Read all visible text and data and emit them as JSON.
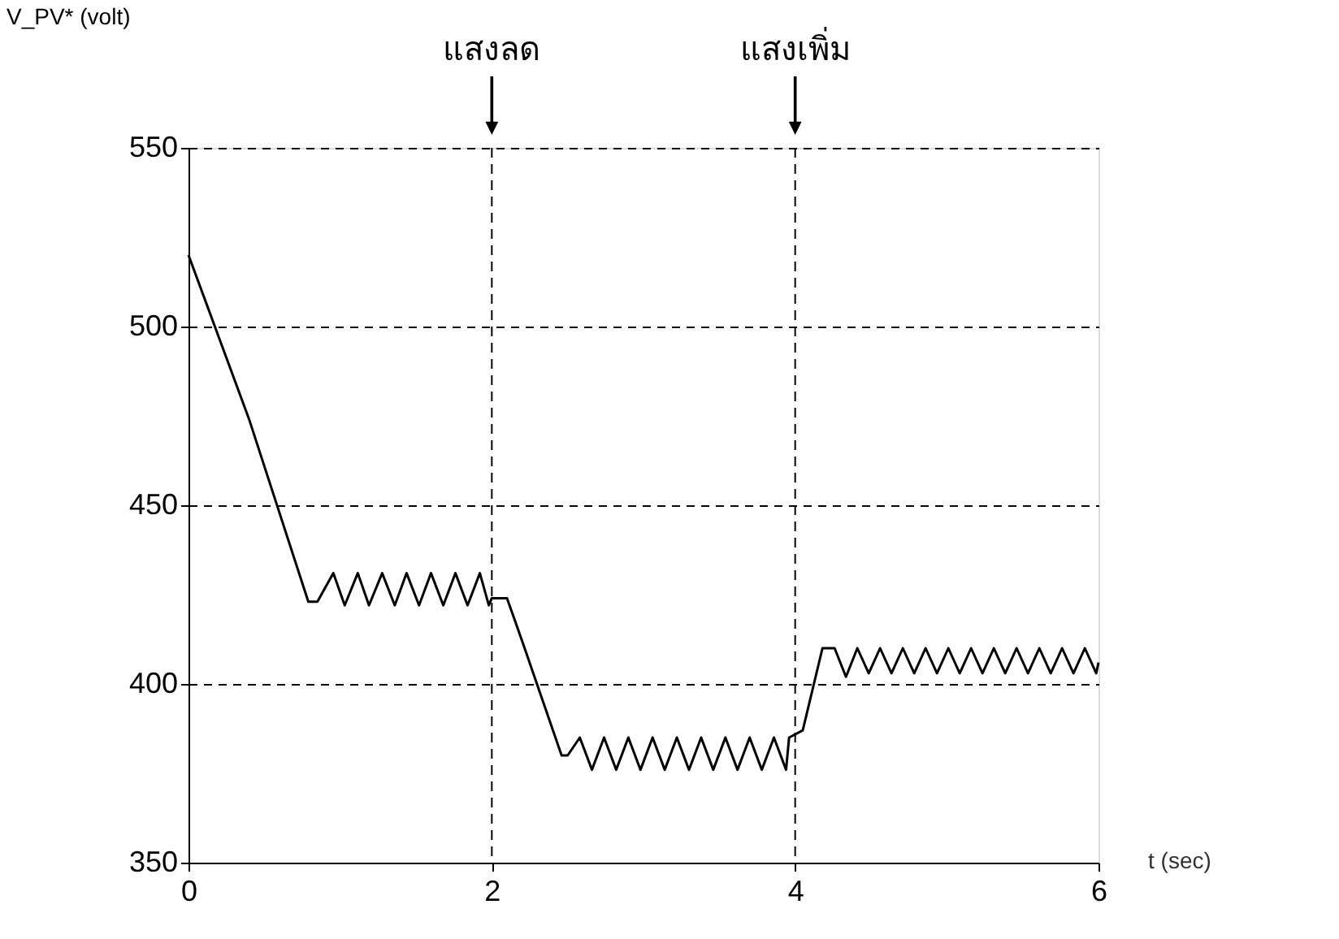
{
  "chart_data": {
    "type": "line",
    "xlabel": "t (sec)",
    "xlim": [
      0,
      6
    ],
    "xticks": [
      0,
      2,
      4,
      6
    ],
    "ylim": [
      350,
      550
    ],
    "yticks": [
      350,
      400,
      450,
      500,
      550
    ],
    "grid": "y",
    "line_style": "solid",
    "annotations": [
      "V_PV* (volt)"
    ],
    "ref_lines": [
      {
        "axis": "x",
        "value": 2,
        "label": "แสงลด",
        "color": "#000000",
        "line_style": "dashed"
      },
      {
        "axis": "x",
        "value": 4,
        "label": "แสงเพิ่ม",
        "color": "#000000",
        "line_style": "dashed"
      }
    ],
    "series": [
      {
        "color": "#000000",
        "x": [
          0,
          0.2,
          0.4,
          0.79,
          0.85,
          0.955,
          1.03,
          1.116,
          1.19,
          1.277,
          1.36,
          1.438,
          1.52,
          1.599,
          1.68,
          1.76,
          1.84,
          1.921,
          1.98,
          2.0,
          2.1,
          2.2,
          2.46,
          2.5,
          2.58,
          2.66,
          2.74,
          2.82,
          2.9,
          2.98,
          3.06,
          3.14,
          3.22,
          3.3,
          3.38,
          3.46,
          3.54,
          3.62,
          3.7,
          3.78,
          3.86,
          3.94,
          3.96,
          4.05,
          4.18,
          4.26,
          4.335,
          4.41,
          4.485,
          4.56,
          4.635,
          4.71,
          4.785,
          4.86,
          4.935,
          5.01,
          5.085,
          5.16,
          5.235,
          5.31,
          5.385,
          5.46,
          5.535,
          5.61,
          5.685,
          5.76,
          5.835,
          5.91,
          5.985,
          6.0
        ],
        "values": [
          520,
          497,
          474,
          423,
          423,
          431,
          422,
          431,
          422,
          431,
          422,
          431,
          422,
          431,
          422,
          431,
          422,
          431,
          422,
          424,
          424,
          412,
          380,
          380,
          385,
          376,
          385,
          376,
          385,
          376,
          385,
          376,
          385,
          376,
          385,
          376,
          385,
          376,
          385,
          376,
          385,
          376,
          385,
          387,
          410,
          410,
          402,
          410,
          403,
          410,
          403,
          410,
          403,
          410,
          403,
          410,
          403,
          410,
          403,
          410,
          403,
          410,
          403,
          410,
          403,
          410,
          403,
          410,
          403,
          406
        ]
      }
    ]
  }
}
